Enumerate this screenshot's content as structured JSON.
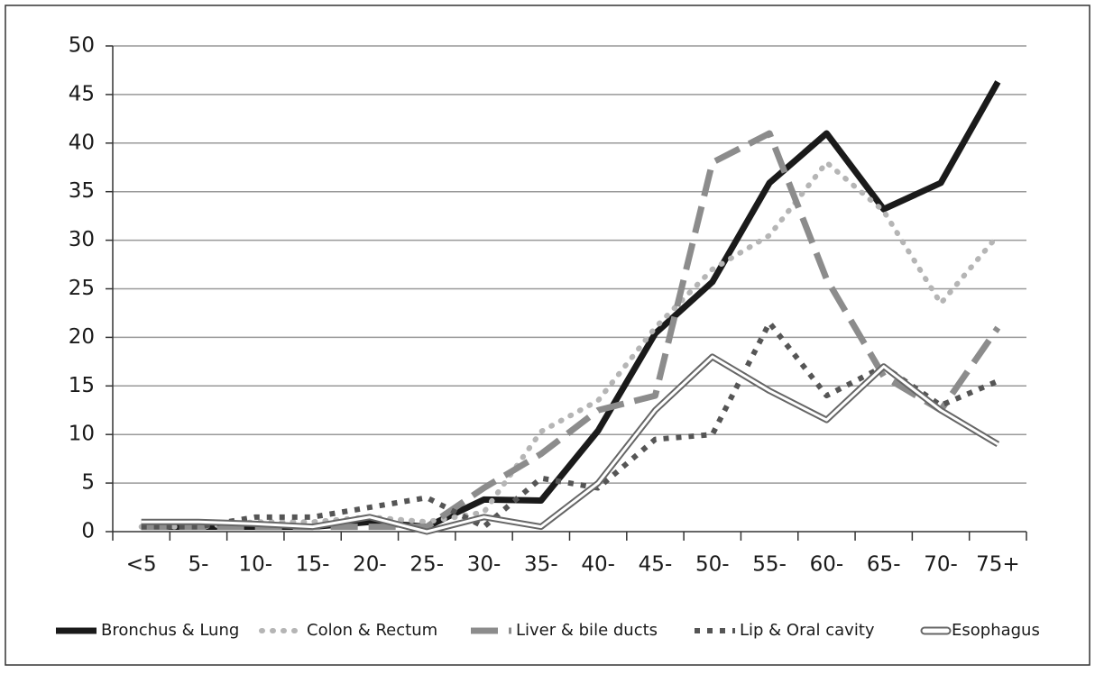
{
  "chart_data": {
    "type": "line",
    "categories": [
      "<5",
      "5-",
      "10-",
      "15-",
      "20-",
      "25-",
      "30-",
      "35-",
      "40-",
      "45-",
      "50-",
      "55-",
      "60-",
      "65-",
      "70-",
      "75+"
    ],
    "series": [
      {
        "name": "Bronchus & Lung",
        "color": "#1a1a1a",
        "values": [
          0.5,
          0.5,
          0.5,
          0.5,
          1,
          0.5,
          3.3,
          3.2,
          10.4,
          20.4,
          25.7,
          35.9,
          41,
          33.2,
          35.9,
          46.3
        ]
      },
      {
        "name": "Colon & Rectum",
        "color": "#b5b5b5",
        "values": [
          0.5,
          0.5,
          1,
          1,
          1.5,
          1,
          2,
          10.3,
          13.5,
          21,
          27,
          30.5,
          38,
          33,
          23.5,
          30.5
        ]
      },
      {
        "name": "Liver & bile ducts",
        "color": "#8c8c8c",
        "values": [
          0.5,
          0.5,
          0.5,
          0.5,
          0.5,
          0.5,
          4.5,
          8,
          12.5,
          14,
          38,
          41,
          26,
          16,
          12.5,
          21
        ]
      },
      {
        "name": "Lip & Oral cavity",
        "color": "#555555",
        "values": [
          0.5,
          0.5,
          1.5,
          1.5,
          2.5,
          3.5,
          0.5,
          5.5,
          4.5,
          9.5,
          10,
          21.5,
          14,
          17,
          13,
          15.5
        ]
      },
      {
        "name": "Esophagus",
        "color": "#ffffff",
        "values": [
          1,
          1,
          0.8,
          0.5,
          1.5,
          0,
          1.5,
          0.5,
          5,
          12.5,
          18,
          14.5,
          11.5,
          17,
          12.5,
          9
        ]
      }
    ],
    "ylim": [
      0,
      50
    ],
    "yticks": [
      0,
      5,
      10,
      15,
      20,
      25,
      30,
      35,
      40,
      45,
      50
    ],
    "grid": true,
    "legend": "bottom"
  }
}
